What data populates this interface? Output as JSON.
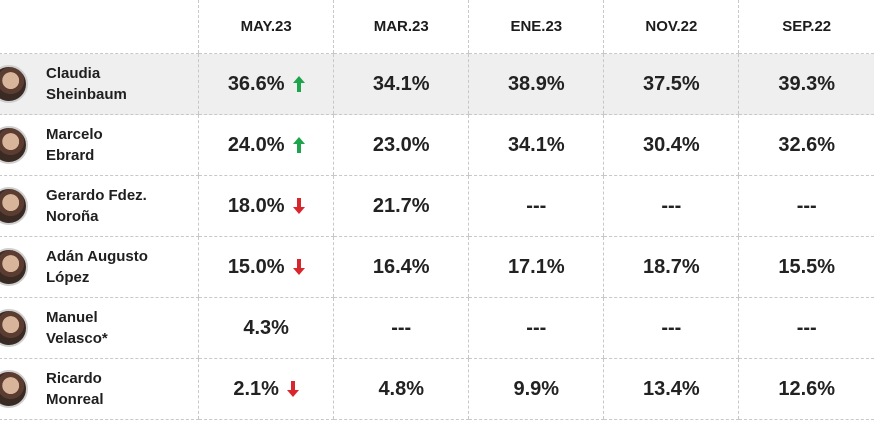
{
  "chart_data": {
    "type": "table",
    "columns": [
      "MAY.23",
      "MAR.23",
      "ENE.23",
      "NOV.22",
      "SEP.22"
    ],
    "rows": [
      {
        "name_line1": "Claudia",
        "name_line2": "Sheinbaum",
        "values": [
          "36.6%",
          "34.1%",
          "38.9%",
          "37.5%",
          "39.3%"
        ],
        "values_numeric": [
          36.6,
          34.1,
          38.9,
          37.5,
          39.3
        ],
        "trend": "up",
        "trend_color": "#1ea44a"
      },
      {
        "name_line1": "Marcelo",
        "name_line2": "Ebrard",
        "values": [
          "24.0%",
          "23.0%",
          "34.1%",
          "30.4%",
          "32.6%"
        ],
        "values_numeric": [
          24.0,
          23.0,
          34.1,
          30.4,
          32.6
        ],
        "trend": "up",
        "trend_color": "#1ea44a"
      },
      {
        "name_line1": "Gerardo Fdez.",
        "name_line2": "Noroña",
        "values": [
          "18.0%",
          "21.7%",
          "---",
          "---",
          "---"
        ],
        "values_numeric": [
          18.0,
          21.7,
          null,
          null,
          null
        ],
        "trend": "down",
        "trend_color": "#d9262c"
      },
      {
        "name_line1": "Adán Augusto",
        "name_line2": "López",
        "values": [
          "15.0%",
          "16.4%",
          "17.1%",
          "18.7%",
          "15.5%"
        ],
        "values_numeric": [
          15.0,
          16.4,
          17.1,
          18.7,
          15.5
        ],
        "trend": "down",
        "trend_color": "#d9262c"
      },
      {
        "name_line1": "Manuel",
        "name_line2": "Velasco*",
        "values": [
          "4.3%",
          "---",
          "---",
          "---",
          "---"
        ],
        "values_numeric": [
          4.3,
          null,
          null,
          null,
          null
        ],
        "trend": "none",
        "trend_color": ""
      },
      {
        "name_line1": "Ricardo",
        "name_line2": "Monreal",
        "values": [
          "2.1%",
          "4.8%",
          "9.9%",
          "13.4%",
          "12.6%"
        ],
        "values_numeric": [
          2.1,
          4.8,
          9.9,
          13.4,
          12.6
        ],
        "trend": "down",
        "trend_color": "#d9262c"
      }
    ],
    "highlight_row": 0,
    "highlight_color": "#efefef",
    "grid": "dashed"
  }
}
